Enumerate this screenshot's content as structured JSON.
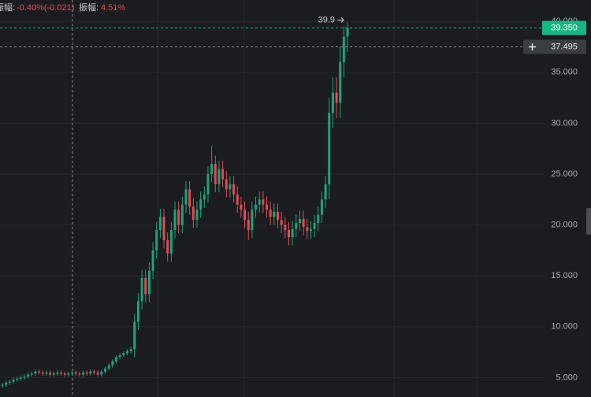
{
  "chart_data": {
    "type": "candlestick",
    "header": [
      {
        "label": "振幅:",
        "value": "-0.40%(-0.021)"
      },
      {
        "label": "振幅:",
        "value": "4.51%"
      }
    ],
    "open": [
      4.2,
      4.3,
      4.5,
      4.6,
      4.8,
      4.9,
      5.0,
      5.1,
      5.3,
      5.4,
      5.6,
      5.5,
      5.4,
      5.5,
      5.3,
      5.4,
      5.5,
      5.4,
      5.3,
      5.4,
      5.5,
      5.4,
      5.3,
      5.5,
      5.4,
      5.6,
      5.5,
      5.3,
      5.6,
      5.9,
      6.2,
      6.6,
      7.0,
      7.2,
      7.4,
      7.6,
      7.8,
      10.5,
      12.5,
      14.8,
      13.2,
      15.5,
      17.5,
      19.5,
      20.8,
      18.5,
      17.2,
      19.5,
      21.5,
      20.0,
      22.0,
      23.5,
      21.8,
      20.5,
      21.5,
      22.5,
      23.0,
      25.0,
      26.0,
      24.0,
      25.5,
      24.5,
      23.5,
      24.0,
      23.0,
      22.0,
      21.5,
      20.5,
      19.5,
      21.5,
      22.0,
      22.5,
      22.0,
      21.5,
      20.8,
      21.3,
      20.5,
      20.0,
      19.5,
      18.8,
      19.6,
      20.2,
      20.6,
      19.8,
      19.4,
      19.6,
      20.2,
      21.0,
      22.5,
      24.0,
      31.0,
      33.0,
      32.0,
      36.0,
      38.5
    ],
    "high": [
      4.5,
      4.7,
      4.8,
      5.0,
      5.1,
      5.2,
      5.3,
      5.5,
      5.6,
      5.8,
      5.8,
      5.7,
      5.7,
      5.7,
      5.6,
      5.7,
      5.7,
      5.6,
      5.6,
      5.7,
      5.7,
      5.6,
      5.7,
      5.7,
      5.8,
      5.8,
      5.7,
      5.8,
      6.1,
      6.4,
      6.8,
      7.2,
      7.4,
      7.6,
      7.8,
      8.0,
      11.3,
      13.3,
      15.6,
      15.6,
      16.3,
      18.3,
      20.3,
      21.6,
      21.6,
      19.3,
      20.3,
      22.3,
      22.3,
      22.8,
      24.3,
      24.3,
      22.6,
      22.3,
      23.3,
      23.8,
      25.8,
      27.8,
      26.8,
      26.3,
      26.3,
      25.3,
      24.8,
      24.8,
      23.8,
      22.8,
      22.3,
      21.3,
      22.3,
      22.8,
      23.3,
      23.3,
      22.8,
      22.3,
      22.1,
      22.1,
      21.3,
      20.8,
      20.3,
      20.4,
      21.0,
      21.4,
      21.4,
      20.6,
      20.4,
      21.0,
      21.8,
      23.3,
      24.8,
      32.5,
      34.5,
      34.5,
      37.5,
      39.5,
      39.9
    ],
    "low": [
      4.0,
      4.1,
      4.3,
      4.4,
      4.6,
      4.7,
      4.8,
      4.9,
      5.1,
      5.2,
      5.3,
      5.2,
      5.2,
      5.1,
      5.1,
      5.2,
      5.2,
      5.1,
      5.1,
      5.2,
      5.2,
      5.1,
      5.1,
      5.2,
      5.2,
      5.3,
      5.1,
      5.1,
      5.4,
      5.7,
      6.0,
      6.4,
      6.8,
      7.0,
      7.2,
      7.4,
      7.0,
      9.7,
      11.7,
      12.4,
      12.4,
      14.7,
      16.7,
      18.7,
      17.7,
      16.4,
      16.4,
      18.7,
      19.2,
      19.2,
      21.2,
      21.0,
      19.7,
      19.7,
      20.7,
      21.7,
      22.2,
      24.2,
      23.2,
      23.2,
      23.7,
      22.7,
      22.7,
      22.2,
      21.2,
      20.7,
      19.7,
      18.5,
      18.7,
      20.7,
      21.2,
      21.2,
      20.7,
      20.0,
      20.0,
      19.7,
      19.2,
      18.7,
      18.0,
      18.0,
      18.8,
      19.4,
      19.0,
      18.6,
      18.6,
      18.8,
      19.4,
      20.2,
      21.7,
      22.5,
      29.5,
      30.5,
      30.5,
      34.5,
      37.0
    ],
    "close": [
      4.3,
      4.5,
      4.6,
      4.8,
      4.9,
      5.0,
      5.1,
      5.3,
      5.4,
      5.6,
      5.5,
      5.4,
      5.5,
      5.3,
      5.4,
      5.5,
      5.4,
      5.3,
      5.4,
      5.5,
      5.4,
      5.3,
      5.5,
      5.4,
      5.6,
      5.5,
      5.3,
      5.6,
      5.9,
      6.2,
      6.6,
      7.0,
      7.2,
      7.4,
      7.6,
      7.8,
      10.5,
      12.5,
      14.8,
      13.2,
      15.5,
      17.5,
      19.5,
      20.8,
      18.5,
      17.2,
      19.5,
      21.5,
      20.0,
      22.0,
      23.5,
      21.8,
      20.5,
      21.5,
      22.5,
      23.0,
      25.0,
      26.0,
      24.0,
      25.5,
      24.5,
      23.5,
      24.0,
      23.0,
      22.0,
      21.5,
      20.5,
      19.5,
      21.5,
      22.0,
      22.5,
      22.0,
      21.5,
      20.8,
      21.3,
      20.5,
      20.0,
      19.5,
      18.8,
      19.6,
      20.2,
      20.6,
      19.8,
      19.4,
      19.6,
      20.2,
      21.0,
      22.5,
      24.0,
      31.0,
      33.0,
      32.0,
      36.0,
      38.5,
      39.35
    ],
    "up_color": "#1fa37a",
    "down_color": "#e04b57",
    "ylim": [
      3.1,
      42.1
    ],
    "yticks": [
      {
        "value": 5,
        "label": "5.000"
      },
      {
        "value": 10,
        "label": "10.000"
      },
      {
        "value": 15,
        "label": "15.000"
      },
      {
        "value": 20,
        "label": "20.000"
      },
      {
        "value": 25,
        "label": "25.000"
      },
      {
        "value": 30,
        "label": "30.000"
      },
      {
        "value": 35,
        "label": "35.000"
      },
      {
        "value": 40,
        "label": "40.000"
      }
    ],
    "grid": true,
    "high_marker": {
      "value": 39.9,
      "label": "39.9"
    },
    "last_price": {
      "value": 39.35,
      "label": "39.350",
      "color": "#17b785"
    },
    "cursor_price": {
      "value": 37.495,
      "label": "37.495",
      "color": "#3a3d42"
    }
  }
}
